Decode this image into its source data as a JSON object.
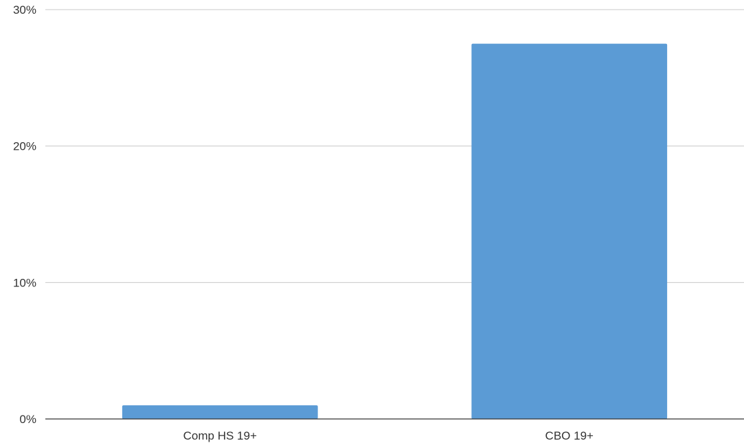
{
  "chart_data": {
    "type": "bar",
    "title": "",
    "xlabel": "",
    "ylabel": "",
    "categories": [
      "Comp HS 19+",
      "CBO 19+"
    ],
    "values": [
      1.0,
      27.5
    ],
    "ylim": [
      0,
      30
    ],
    "yticks": [
      0,
      10,
      20,
      30
    ],
    "ytick_labels": [
      "0%",
      "10%",
      "20%",
      "30%"
    ],
    "grid": true,
    "legend": "none",
    "bar_color": "#5b9bd5"
  }
}
